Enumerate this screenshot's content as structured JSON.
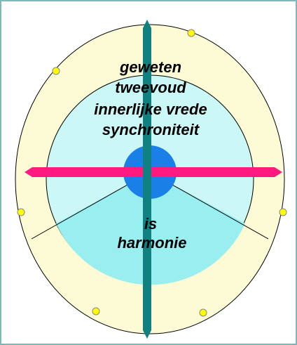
{
  "labels": [
    "geweten",
    "tweevoud",
    "innerlijke vrede",
    "synchroniteit",
    "is",
    "harmonie"
  ]
}
